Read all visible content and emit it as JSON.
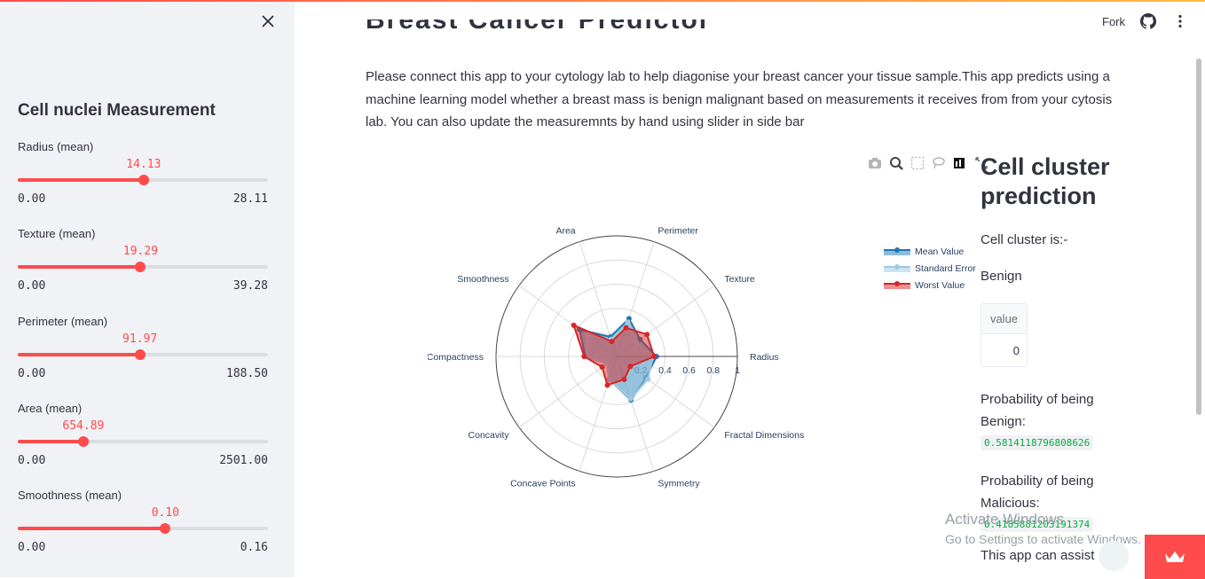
{
  "sidebar": {
    "title": "Cell nuclei Measurement",
    "sliders": [
      {
        "label": "Radius (mean)",
        "value": "14.13",
        "min": "0.00",
        "max": "28.11",
        "fraction": 0.503
      },
      {
        "label": "Texture (mean)",
        "value": "19.29",
        "min": "0.00",
        "max": "39.28",
        "fraction": 0.491
      },
      {
        "label": "Perimeter (mean)",
        "value": "91.97",
        "min": "0.00",
        "max": "188.50",
        "fraction": 0.488
      },
      {
        "label": "Area (mean)",
        "value": "654.89",
        "min": "0.00",
        "max": "2501.00",
        "fraction": 0.262
      },
      {
        "label": "Smoothness (mean)",
        "value": "0.10",
        "min": "0.00",
        "max": "0.16",
        "fraction": 0.59
      }
    ]
  },
  "header": {
    "fork_label": "Fork"
  },
  "main": {
    "heading": "Breast Cancer Predictor",
    "intro": "Please connect this app to your cytology lab to help diagonise your breast cancer your tissue sample.This app predicts using a machine learning model whether a breast mass is benign malignant based on measurements it receives from from your cytosis lab. You can also update the measuremnts by hand using slider in side bar"
  },
  "prediction": {
    "title": "Cell cluster prediction",
    "cluster_label": "Cell cluster is:-",
    "cluster_value": "Benign",
    "table_header": "value",
    "table_value": "0",
    "benign_label": "Probability of being Benign:",
    "benign_value": "0.5814118796808626",
    "malicious_label": "Probability of being Malicious:",
    "malicious_value": "0.4185881203191374",
    "assist_text": "This app can assist"
  },
  "watermark": {
    "line1": "Activate Windows",
    "line2": "Go to Settings to activate Windows."
  },
  "chart_data": {
    "type": "radar",
    "categories": [
      "Radius",
      "Texture",
      "Perimeter",
      "Area",
      "Smoothness",
      "Compactness",
      "Concavity",
      "Concave Points",
      "Symmetry",
      "Fractal Dimensions"
    ],
    "radial_ticks": [
      "0.2",
      "0.4",
      "0.6",
      "0.8",
      "1"
    ],
    "radial_range": [
      0,
      1
    ],
    "series": [
      {
        "name": "Mean Value",
        "color": "#1f77b4",
        "values": [
          0.33,
          0.24,
          0.33,
          0.17,
          0.38,
          0.26,
          0.1,
          0.2,
          0.38,
          0.3
        ]
      },
      {
        "name": "Standard Error",
        "color": "#9ecae1",
        "values": [
          0.3,
          0.2,
          0.3,
          0.15,
          0.3,
          0.25,
          0.1,
          0.2,
          0.37,
          0.32
        ]
      },
      {
        "name": "Worst Value",
        "color": "#d62728",
        "values": [
          0.31,
          0.31,
          0.25,
          0.13,
          0.44,
          0.27,
          0.15,
          0.25,
          0.2,
          0.14
        ]
      }
    ],
    "legend_position": "top-right"
  },
  "colors": {
    "accent": "#ff4b4b",
    "sidebar_bg": "#f0f2f6",
    "code_text": "#09ab3b"
  }
}
